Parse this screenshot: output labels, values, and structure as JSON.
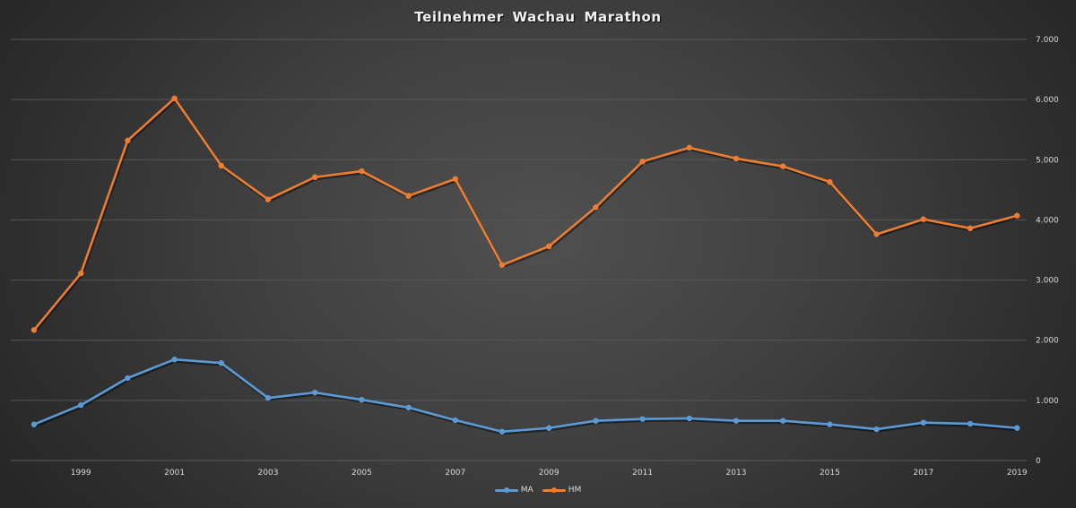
{
  "chart_data": {
    "type": "line",
    "title": "Teilnehmer  Wachau  Marathon",
    "xlabel": "",
    "ylabel": "",
    "x": [
      1998,
      1999,
      2000,
      2001,
      2002,
      2003,
      2004,
      2005,
      2006,
      2007,
      2008,
      2009,
      2010,
      2011,
      2012,
      2013,
      2014,
      2015,
      2016,
      2017,
      2018,
      2019
    ],
    "x_tick_labels": [
      "1999",
      "2001",
      "2003",
      "2005",
      "2007",
      "2009",
      "2011",
      "2013",
      "2015",
      "2017",
      "2019"
    ],
    "y_tick_labels": [
      "0",
      "1.000",
      "2.000",
      "3.000",
      "4.000",
      "5.000",
      "6.000",
      "7.000"
    ],
    "ylim": [
      0,
      7000
    ],
    "grid": true,
    "y_axis_position": "right",
    "legend_position": "bottom",
    "series": [
      {
        "name": "MA",
        "color": "#5b9bd5",
        "values": [
          600,
          920,
          1370,
          1680,
          1620,
          1040,
          1130,
          1010,
          880,
          670,
          480,
          540,
          660,
          690,
          700,
          660,
          660,
          600,
          520,
          630,
          610,
          540
        ]
      },
      {
        "name": "HM",
        "color": "#ed7d31",
        "values": [
          2170,
          3110,
          5320,
          6020,
          4900,
          4340,
          4710,
          4810,
          4400,
          4680,
          3250,
          3560,
          4210,
          4970,
          5200,
          5020,
          4890,
          4630,
          3760,
          4010,
          3860,
          4070
        ]
      }
    ]
  },
  "legend": {
    "items": [
      {
        "label": "MA",
        "color": "#5b9bd5"
      },
      {
        "label": "HM",
        "color": "#ed7d31"
      }
    ]
  }
}
